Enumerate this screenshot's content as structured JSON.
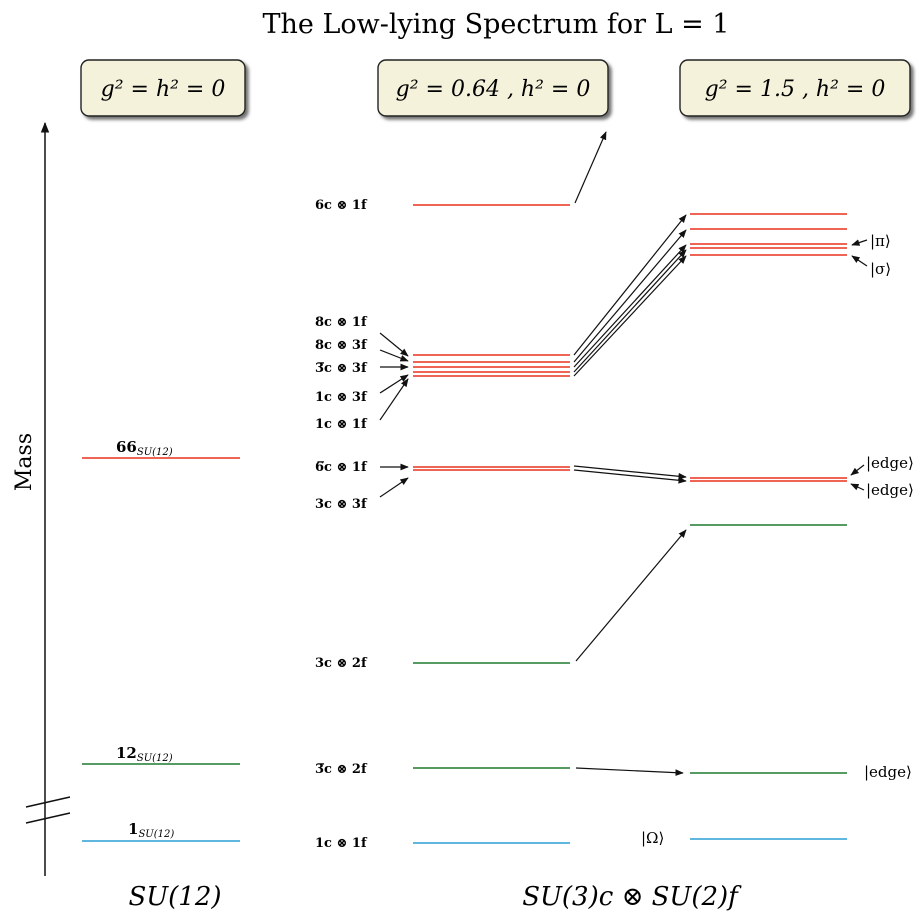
{
  "title": "The Low-lying Spectrum for L = 1",
  "axis_label": "Mass",
  "boxes": [
    {
      "text": "g² = h² = 0"
    },
    {
      "text": "g² = 0.64 ,  h² = 0"
    },
    {
      "text": "g² = 1.5 ,  h² = 0"
    }
  ],
  "su12_labels": [
    {
      "main": "66",
      "sub": "SU(12)"
    },
    {
      "main": "12",
      "sub": "SU(12)"
    },
    {
      "main": "1",
      "sub": "SU(12)"
    }
  ],
  "mid_labels": [
    {
      "text": "6c ⊗ 1f"
    },
    {
      "text": "8c ⊗ 1f"
    },
    {
      "text": "8c ⊗ 3f"
    },
    {
      "text": "3̅c ⊗ 3f"
    },
    {
      "text": "1c ⊗ 3f"
    },
    {
      "text": "1c ⊗ 1f"
    },
    {
      "text": "6̅c ⊗ 1f"
    },
    {
      "text": "3c ⊗ 3f"
    },
    {
      "text": "3c ⊗ 2f"
    },
    {
      "text": "3̅c ⊗ 2f"
    },
    {
      "text": "1c ⊗ 1f"
    }
  ],
  "right_labels": [
    {
      "text": "|π⟩"
    },
    {
      "text": "|σ⟩"
    },
    {
      "text": "|edge⟩"
    },
    {
      "text": "|edge⟩"
    },
    {
      "text": "|edge⟩"
    },
    {
      "text": "|Ω⟩"
    }
  ],
  "bottom_labels": [
    {
      "text": "SU(12)"
    },
    {
      "text": "SU(3)c ⊗ SU(2)f"
    }
  ],
  "colors": {
    "red": "#e8321e",
    "green": "#1f7a2e",
    "blue": "#2a9fd6",
    "box_fill": "#f5f2dc",
    "box_stroke": "#222222",
    "ink": "#111111"
  }
}
